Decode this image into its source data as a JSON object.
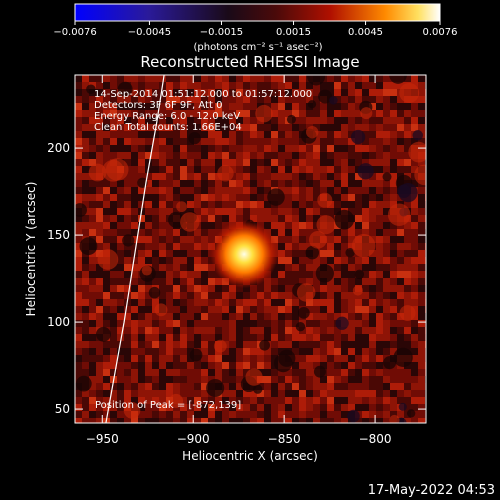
{
  "chart_data": {
    "type": "heatmap",
    "title": "Reconstructed RHESSI Image",
    "xlabel": "Heliocentric X (arcsec)",
    "ylabel": "Heliocentric Y (arcsec)",
    "xlim": [
      -965,
      -772
    ],
    "ylim": [
      42,
      242
    ],
    "x_ticks": [
      -950,
      -900,
      -850,
      -800
    ],
    "y_ticks": [
      50,
      100,
      150,
      200
    ],
    "x_tick_labels": [
      "−950",
      "−900",
      "−850",
      "−800"
    ],
    "y_tick_labels": [
      "50",
      "100",
      "150",
      "200"
    ],
    "colorbar": {
      "min": -0.0076,
      "max": 0.0076,
      "tick_values": [
        -0.0076,
        -0.0045,
        -0.0015,
        0.0015,
        0.0045,
        0.0076
      ],
      "tick_labels": [
        "−0.0076",
        "−0.0045",
        "−0.0015",
        "0.0015",
        "0.0045",
        "0.0076"
      ],
      "units": "(photons cm⁻² s⁻¹ asec⁻²)",
      "colormap": "blue-black-red-yellow-white"
    },
    "info_lines": [
      "14-Sep-2014 01:51:12.000 to 01:57:12.000",
      "Detectors: 3F 6F 9F, Att 0",
      "Energy Range: 6.0 - 12.0 keV",
      "Clean    Total counts: 1.66E+04"
    ],
    "peak_text": "Position of Peak = [-872,139]",
    "peak": {
      "x": -872,
      "y": 139
    },
    "limb_arc": [
      [
        -948,
        42
      ],
      [
        -938,
        100
      ],
      [
        -932,
        140
      ],
      [
        -926,
        180
      ],
      [
        -920,
        215
      ],
      [
        -916,
        242
      ]
    ]
  },
  "footer": {
    "timestamp": "17-May-2022 04:53"
  }
}
